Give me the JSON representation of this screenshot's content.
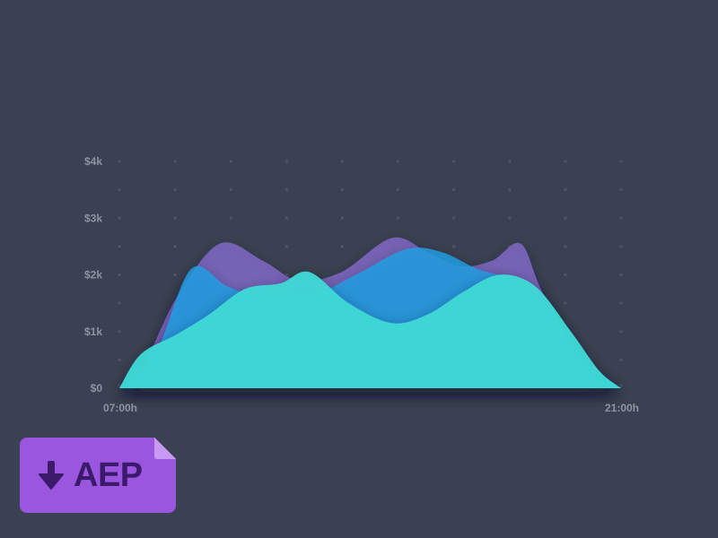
{
  "chart_data": {
    "type": "area",
    "title": "",
    "xlabel": "",
    "ylabel": "",
    "x_tick_labels": [
      "07:00h",
      "21:00h"
    ],
    "y_ticks": [
      {
        "value": 0,
        "label": "$0"
      },
      {
        "value": 1000,
        "label": "$1k"
      },
      {
        "value": 2000,
        "label": "$2k"
      },
      {
        "value": 3000,
        "label": "$3k"
      },
      {
        "value": 4000,
        "label": "$4k"
      }
    ],
    "xlim": [
      7,
      21
    ],
    "ylim": [
      0,
      4000
    ],
    "grid": "dotted",
    "legend": "none",
    "series": [
      {
        "color": "#7f68c4",
        "opacity": 0.85,
        "x": [
          7.0,
          7.6,
          8.6,
          9.8,
          11.0,
          12.0,
          13.2,
          14.6,
          15.6,
          16.5,
          17.4,
          18.2,
          18.8,
          20.0,
          21.0
        ],
        "values": [
          0,
          300,
          1600,
          2550,
          2250,
          1900,
          2050,
          2650,
          2400,
          2150,
          2250,
          2550,
          1700,
          350,
          0
        ]
      },
      {
        "color": "#1f9fe3",
        "opacity": 0.82,
        "x": [
          7.0,
          8.0,
          9.0,
          10.0,
          11.0,
          12.4,
          13.6,
          15.0,
          16.0,
          17.0,
          18.0,
          19.0,
          20.0,
          21.0
        ],
        "values": [
          0,
          600,
          2100,
          1800,
          1600,
          1650,
          2000,
          2450,
          2400,
          2100,
          1900,
          1400,
          500,
          0
        ]
      },
      {
        "color": "#3dd9d5",
        "opacity": 0.96,
        "x": [
          7.0,
          7.6,
          8.6,
          9.5,
          10.5,
          11.5,
          12.3,
          13.4,
          14.6,
          15.6,
          16.6,
          17.6,
          18.6,
          19.6,
          20.4,
          21.0
        ],
        "values": [
          0,
          600,
          950,
          1300,
          1750,
          1850,
          2050,
          1500,
          1150,
          1300,
          1700,
          2000,
          1800,
          1000,
          300,
          0
        ]
      }
    ]
  },
  "badge": {
    "icon": "download-arrow-icon",
    "label": "AEP",
    "color": "#9b56e0",
    "text_color": "#3b1a6b"
  }
}
